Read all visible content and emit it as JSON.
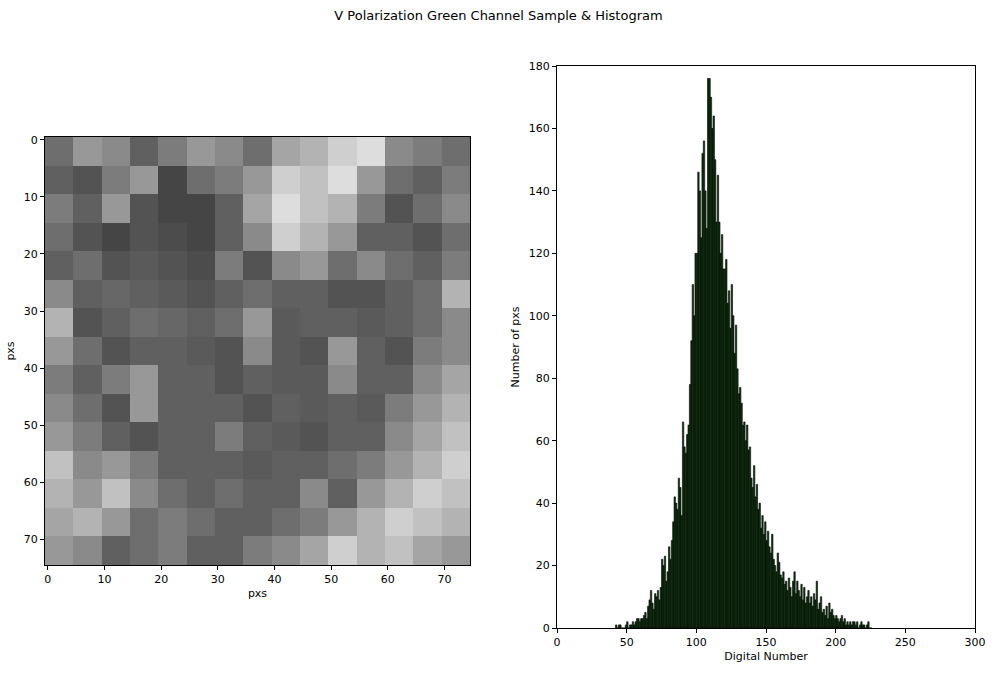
{
  "title": "V Polarization Green Channel Sample & Histogram",
  "chart_data": [
    {
      "type": "heatmap",
      "xlabel": "pxs",
      "ylabel": "pxs",
      "color": "gray",
      "xlim": [
        -0.5,
        74.5
      ],
      "ylim": [
        74.5,
        -0.5
      ],
      "xticks": [
        0,
        10,
        20,
        30,
        40,
        50,
        60,
        70
      ],
      "yticks": [
        0,
        10,
        20,
        30,
        40,
        50,
        60,
        70
      ],
      "zlim": [
        40,
        225
      ],
      "x": [
        2,
        7,
        12,
        17,
        22,
        27,
        32,
        37,
        42,
        47,
        52,
        57,
        62,
        67,
        72
      ],
      "y": [
        2,
        7,
        12,
        17,
        22,
        27,
        32,
        37,
        42,
        47,
        52,
        57,
        62,
        67,
        72
      ],
      "cells": [
        [
          120,
          150,
          140,
          110,
          130,
          150,
          140,
          120,
          160,
          170,
          190,
          200,
          140,
          130,
          120
        ],
        [
          110,
          100,
          130,
          150,
          90,
          120,
          130,
          150,
          190,
          180,
          200,
          150,
          120,
          110,
          130
        ],
        [
          130,
          110,
          150,
          100,
          90,
          90,
          110,
          160,
          200,
          180,
          170,
          130,
          100,
          120,
          140
        ],
        [
          120,
          100,
          90,
          100,
          95,
          90,
          110,
          140,
          190,
          170,
          150,
          110,
          110,
          100,
          120
        ],
        [
          110,
          120,
          100,
          105,
          100,
          95,
          130,
          100,
          140,
          150,
          120,
          140,
          120,
          110,
          130
        ],
        [
          140,
          110,
          115,
          110,
          105,
          100,
          110,
          120,
          110,
          110,
          100,
          100,
          110,
          120,
          170
        ],
        [
          170,
          100,
          110,
          120,
          115,
          110,
          120,
          150,
          105,
          110,
          110,
          105,
          110,
          120,
          140
        ],
        [
          150,
          120,
          100,
          110,
          110,
          105,
          100,
          140,
          105,
          100,
          150,
          110,
          100,
          130,
          140
        ],
        [
          130,
          110,
          130,
          150,
          110,
          110,
          100,
          110,
          105,
          105,
          140,
          110,
          110,
          140,
          160
        ],
        [
          140,
          120,
          100,
          150,
          110,
          110,
          110,
          100,
          110,
          105,
          110,
          105,
          130,
          150,
          170
        ],
        [
          150,
          130,
          110,
          100,
          110,
          110,
          130,
          110,
          105,
          100,
          110,
          110,
          140,
          160,
          180
        ],
        [
          180,
          140,
          150,
          130,
          110,
          110,
          110,
          105,
          110,
          110,
          120,
          130,
          150,
          170,
          190
        ],
        [
          170,
          150,
          180,
          140,
          120,
          110,
          120,
          110,
          110,
          140,
          110,
          150,
          170,
          190,
          180
        ],
        [
          160,
          170,
          150,
          120,
          130,
          120,
          110,
          110,
          120,
          130,
          150,
          170,
          190,
          180,
          170
        ],
        [
          150,
          140,
          110,
          120,
          130,
          110,
          110,
          130,
          140,
          160,
          190,
          170,
          180,
          160,
          150
        ]
      ]
    },
    {
      "type": "histogram",
      "xlabel": "Digital Number",
      "ylabel": "Number of pxs",
      "color": "#0b3d0b",
      "xlim": [
        0,
        300
      ],
      "ylim": [
        0,
        180
      ],
      "xticks": [
        0,
        50,
        100,
        150,
        200,
        250,
        300
      ],
      "yticks": [
        0,
        20,
        40,
        60,
        80,
        100,
        120,
        140,
        160,
        180
      ],
      "bins": [
        42,
        43,
        44,
        45,
        46,
        47,
        48,
        49,
        50,
        51,
        52,
        53,
        54,
        55,
        56,
        57,
        58,
        59,
        60,
        61,
        62,
        63,
        64,
        65,
        66,
        67,
        68,
        69,
        70,
        71,
        72,
        73,
        74,
        75,
        76,
        77,
        78,
        79,
        80,
        81,
        82,
        83,
        84,
        85,
        86,
        87,
        88,
        89,
        90,
        91,
        92,
        93,
        94,
        95,
        96,
        97,
        98,
        99,
        100,
        101,
        102,
        103,
        104,
        105,
        106,
        107,
        108,
        109,
        110,
        111,
        112,
        113,
        114,
        115,
        116,
        117,
        118,
        119,
        120,
        121,
        122,
        123,
        124,
        125,
        126,
        127,
        128,
        129,
        130,
        131,
        132,
        133,
        134,
        135,
        136,
        137,
        138,
        139,
        140,
        141,
        142,
        143,
        144,
        145,
        146,
        147,
        148,
        149,
        150,
        151,
        152,
        153,
        154,
        155,
        156,
        157,
        158,
        159,
        160,
        161,
        162,
        163,
        164,
        165,
        166,
        167,
        168,
        169,
        170,
        171,
        172,
        173,
        174,
        175,
        176,
        177,
        178,
        179,
        180,
        181,
        182,
        183,
        184,
        185,
        186,
        187,
        188,
        189,
        190,
        191,
        192,
        193,
        194,
        195,
        196,
        197,
        198,
        199,
        200,
        201,
        202,
        203,
        204,
        205,
        206,
        207,
        208,
        209,
        210,
        211,
        212,
        213,
        214,
        215,
        216,
        217,
        218,
        219,
        220,
        221,
        222,
        223,
        224,
        225,
        226
      ],
      "counts": [
        1,
        0,
        1,
        1,
        0,
        0,
        0,
        1,
        2,
        0,
        1,
        1,
        2,
        1,
        2,
        3,
        3,
        2,
        3,
        3,
        4,
        5,
        3,
        7,
        9,
        12,
        8,
        6,
        11,
        10,
        12,
        9,
        13,
        22,
        20,
        23,
        15,
        18,
        26,
        22,
        28,
        34,
        42,
        40,
        38,
        48,
        45,
        36,
        66,
        58,
        56,
        62,
        65,
        78,
        92,
        110,
        100,
        120,
        120,
        146,
        140,
        125,
        152,
        156,
        140,
        128,
        176,
        176,
        170,
        160,
        164,
        150,
        130,
        145,
        130,
        120,
        126,
        115,
        115,
        118,
        104,
        108,
        96,
        110,
        100,
        88,
        97,
        83,
        75,
        77,
        72,
        65,
        66,
        60,
        65,
        57,
        58,
        48,
        45,
        52,
        42,
        46,
        38,
        40,
        32,
        36,
        30,
        34,
        28,
        31,
        26,
        24,
        30,
        22,
        20,
        18,
        24,
        21,
        17,
        16,
        18,
        14,
        15,
        12,
        16,
        13,
        10,
        15,
        18,
        11,
        15,
        12,
        10,
        14,
        9,
        13,
        8,
        10,
        12,
        8,
        10,
        7,
        11,
        9,
        15,
        6,
        8,
        10,
        5,
        6,
        4,
        7,
        3,
        8,
        5,
        6,
        4,
        3,
        4,
        3,
        2,
        3,
        4,
        2,
        3,
        1,
        2,
        1,
        2,
        1,
        2,
        2,
        1,
        2,
        0,
        1,
        2,
        1,
        1,
        0,
        1,
        2,
        0,
        0
      ]
    }
  ]
}
